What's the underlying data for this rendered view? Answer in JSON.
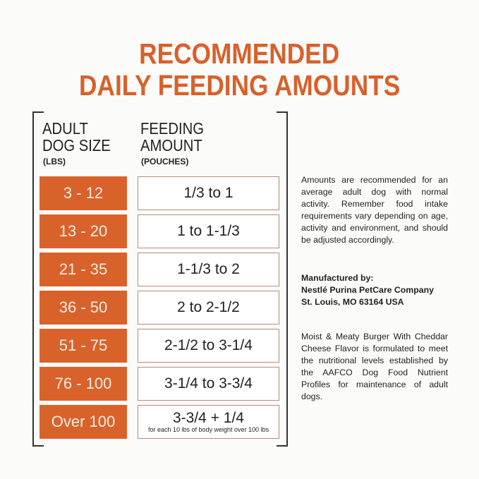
{
  "title": {
    "line1": "RECOMMENDED",
    "line2": "DAILY FEEDING AMOUNTS"
  },
  "table": {
    "col1": {
      "line1": "ADULT",
      "line2": "DOG SIZE",
      "unit": "(LBS)"
    },
    "col2": {
      "line1": "FEEDING",
      "line2": "AMOUNT",
      "unit": "(POUCHES)"
    },
    "rows": [
      {
        "size": "3 - 12",
        "amount": "1/3 to 1"
      },
      {
        "size": "13 - 20",
        "amount": "1 to 1-1/3"
      },
      {
        "size": "21 - 35",
        "amount": "1-1/3 to 2"
      },
      {
        "size": "36 - 50",
        "amount": "2 to 2-1/2"
      },
      {
        "size": "51 - 75",
        "amount": "2-1/2 to 3-1/4"
      },
      {
        "size": "76 - 100",
        "amount": "3-1/4 to 3-3/4"
      },
      {
        "size": "Over 100",
        "amount": "3-3/4 + 1/4",
        "note": "for each 10 lbs of body weight over 100 lbs"
      }
    ]
  },
  "side": {
    "p1": "Amounts are recommended for an average adult dog with normal activity. Remember food intake requirements vary depending on age, activity and environment, and should be adjusted accordingly.",
    "manufacturer_label": "Manufactured by:",
    "manufacturer_name": "Nestlé Purina PetCare Company",
    "manufacturer_address": "St. Louis, MO 63164 USA",
    "p3": "Moist & Meaty Burger With Cheddar Cheese Flavor is formulated to meet the nutritional levels established by the AAFCO Dog Food Nutrient Profiles for maintenance of adult dogs."
  },
  "colors": {
    "accent": "#d9622b"
  }
}
